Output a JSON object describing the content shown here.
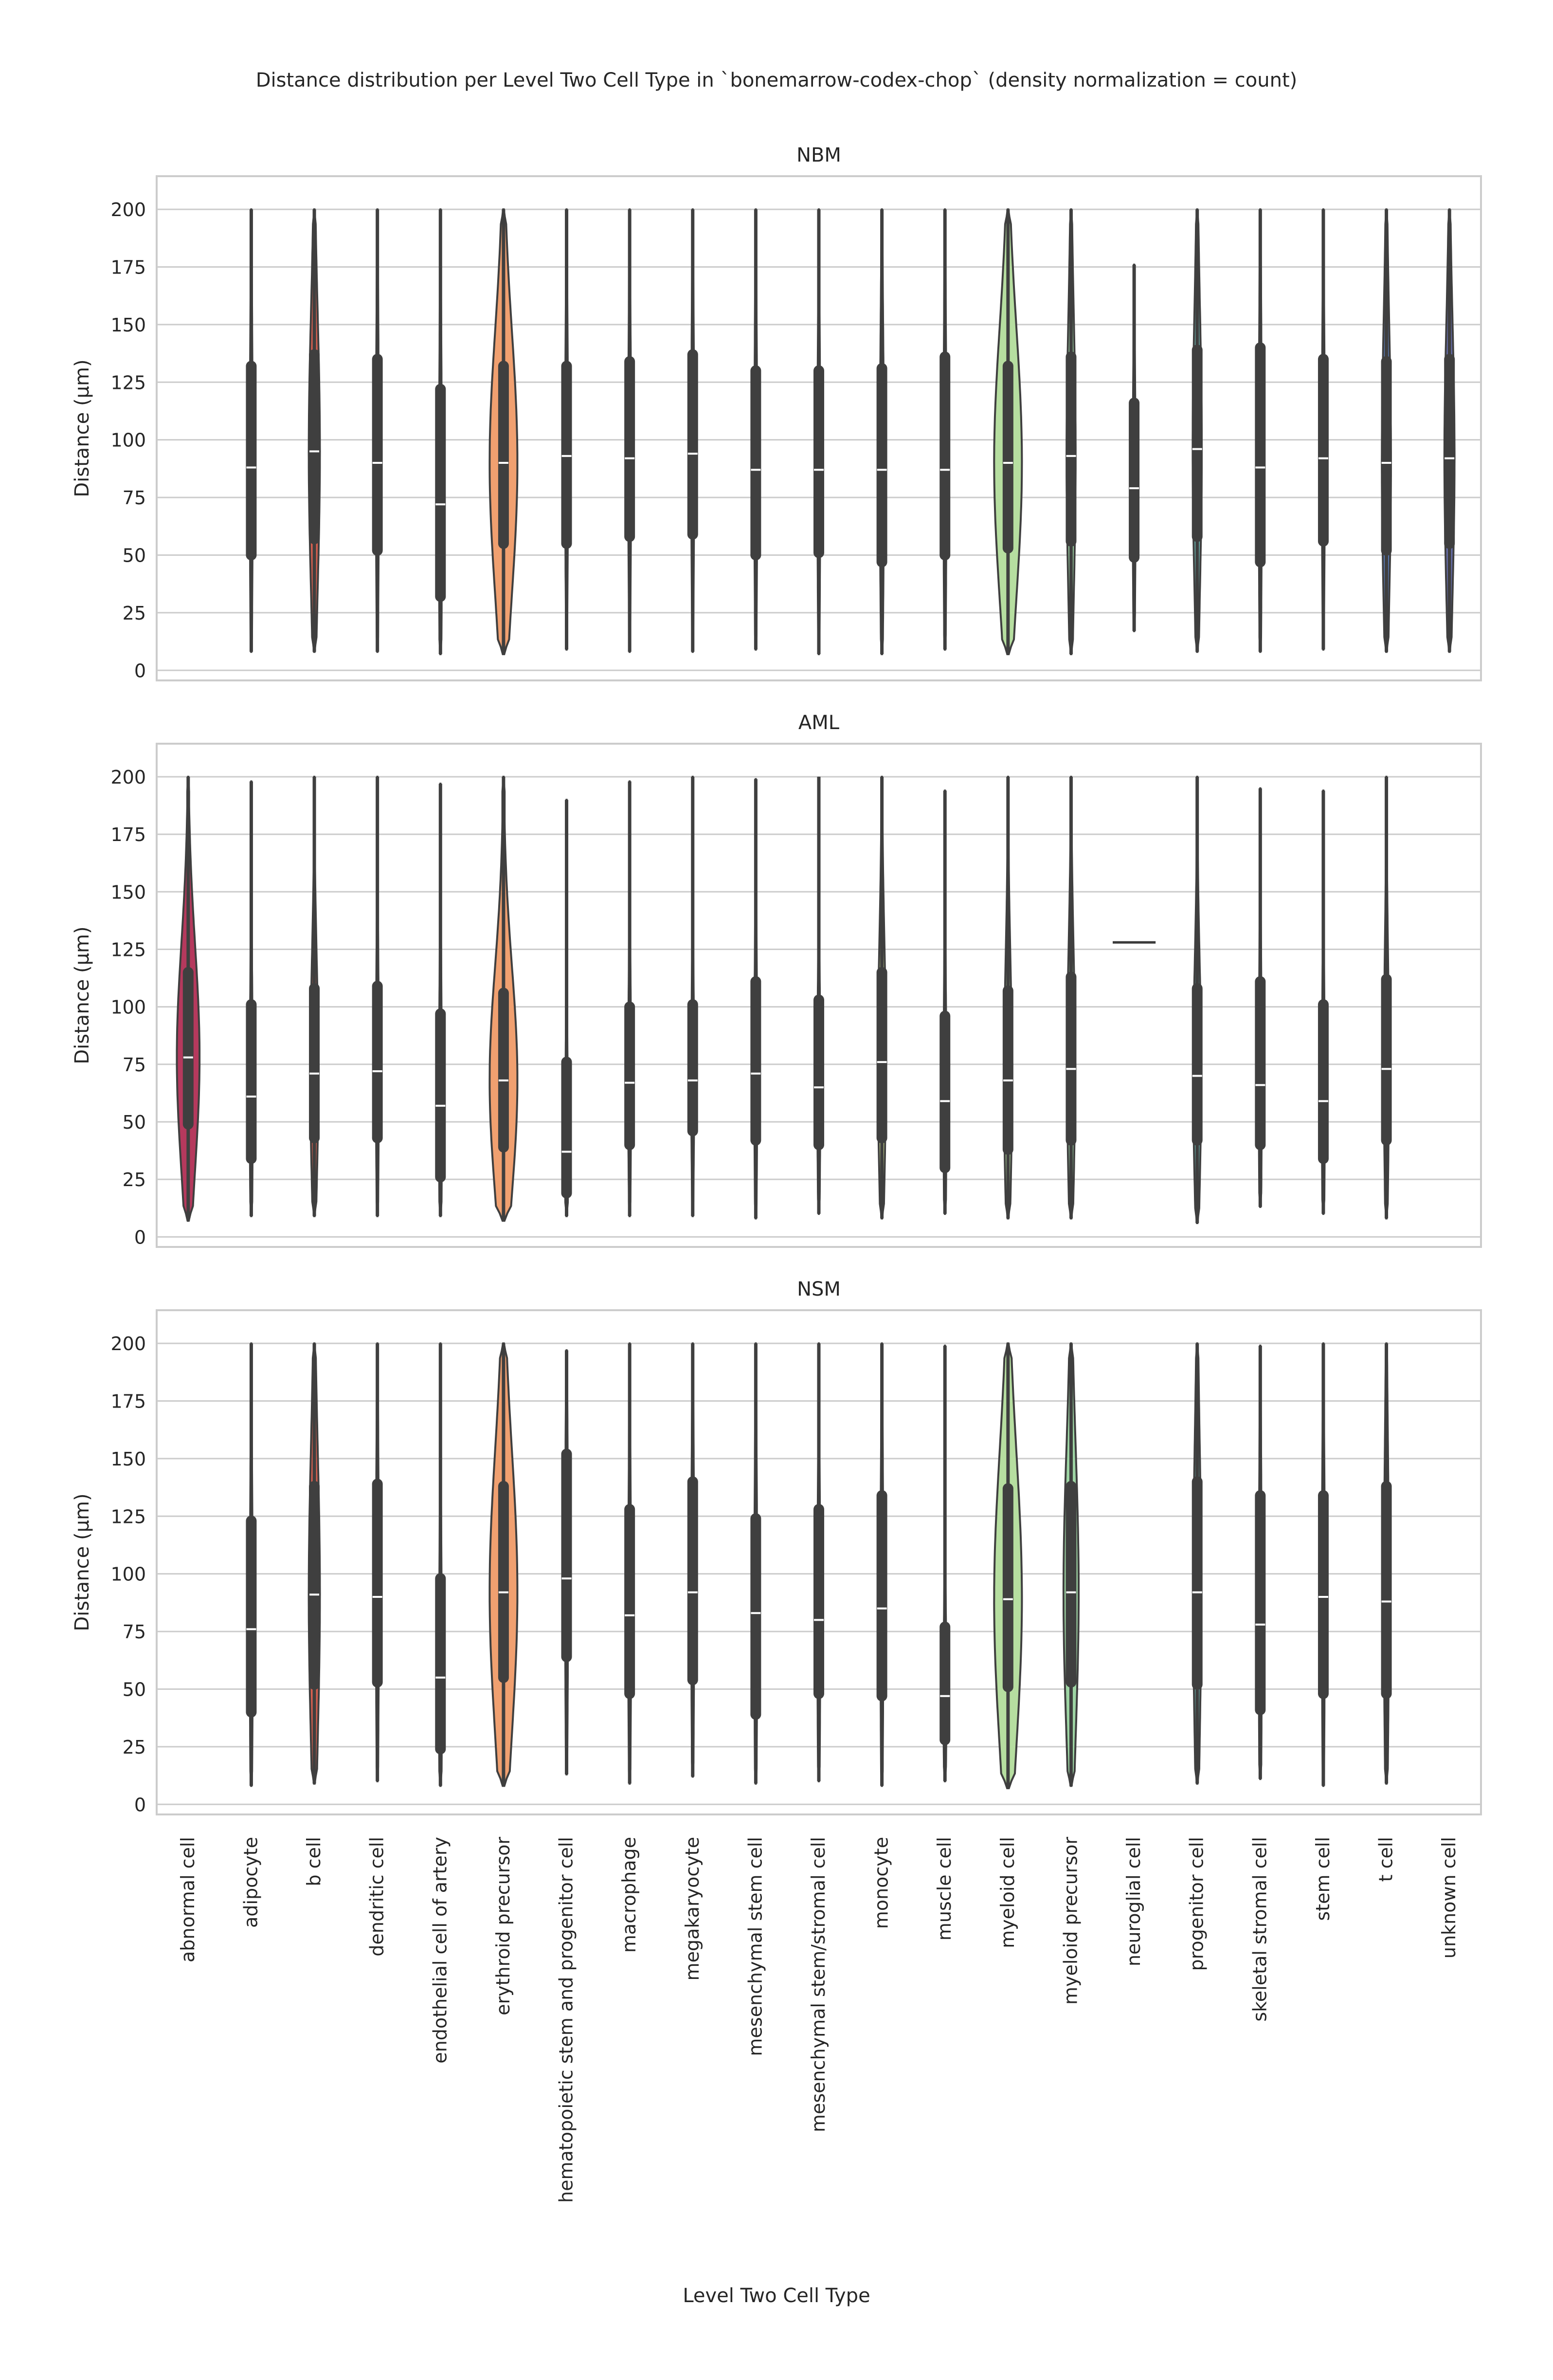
{
  "chart_data": {
    "type": "violin",
    "title": "Distance distribution per Level Two Cell Type in `bonemarrow-codex-chop` (density normalization = count)",
    "xlabel": "Level Two Cell Type",
    "ylabel": "Distance (µm)",
    "ylim": [
      0,
      210
    ],
    "yticks": [
      0,
      25,
      50,
      75,
      100,
      125,
      150,
      175,
      200
    ],
    "grid": true,
    "categories": [
      "abnormal cell",
      "adipocyte",
      "b cell",
      "dendritic cell",
      "endothelial cell of artery",
      "erythroid precursor",
      "hematopoietic stem and progenitor cell",
      "macrophage",
      "megakaryocyte",
      "mesenchymal stem cell",
      "mesenchymal stem/stromal cell",
      "monocyte",
      "muscle cell",
      "myeloid cell",
      "myeloid precursor",
      "neuroglial cell",
      "progenitor cell",
      "skeletal stromal cell",
      "stem cell",
      "t cell",
      "unknown cell"
    ],
    "colors": [
      "#b5395d",
      "#c64a4f",
      "#d9604f",
      "#e6744e",
      "#ef8c55",
      "#f0a070",
      "#f4b87a",
      "#f7cd8a",
      "#f5de96",
      "#f0ea9d",
      "#e7ee9b",
      "#dcef9a",
      "#c8e69c",
      "#b6dea0",
      "#9dd4a3",
      "#80c7a5",
      "#6ab0ab",
      "#5a9fb8",
      "#4e8dbf",
      "#5a7dbd",
      "#6a72b5"
    ],
    "panels": [
      {
        "title": "NBM",
        "violins": [
          null,
          {
            "min": 8,
            "max": 200,
            "q1": 50,
            "median": 88,
            "q3": 132,
            "w": 0.02
          },
          {
            "min": 8,
            "max": 200,
            "q1": 57,
            "median": 95,
            "q3": 137,
            "w": 0.22
          },
          {
            "min": 8,
            "max": 200,
            "q1": 52,
            "median": 90,
            "q3": 135,
            "w": 0.02
          },
          {
            "min": 7,
            "max": 200,
            "q1": 32,
            "median": 72,
            "q3": 122,
            "w": 0.02
          },
          {
            "min": 7,
            "max": 200,
            "q1": 55,
            "median": 90,
            "q3": 132,
            "w": 0.55
          },
          {
            "min": 9,
            "max": 200,
            "q1": 55,
            "median": 93,
            "q3": 132,
            "w": 0.02
          },
          {
            "min": 8,
            "max": 200,
            "q1": 58,
            "median": 92,
            "q3": 134,
            "w": 0.02
          },
          {
            "min": 8,
            "max": 200,
            "q1": 59,
            "median": 94,
            "q3": 137,
            "w": 0.02
          },
          {
            "min": 9,
            "max": 200,
            "q1": 50,
            "median": 87,
            "q3": 130,
            "w": 0.02
          },
          {
            "min": 7,
            "max": 200,
            "q1": 51,
            "median": 87,
            "q3": 130,
            "w": 0.02
          },
          {
            "min": 7,
            "max": 200,
            "q1": 47,
            "median": 87,
            "q3": 131,
            "w": 0.08
          },
          {
            "min": 9,
            "max": 200,
            "q1": 50,
            "median": 87,
            "q3": 136,
            "w": 0.02
          },
          {
            "min": 7,
            "max": 200,
            "q1": 53,
            "median": 90,
            "q3": 132,
            "w": 0.55
          },
          {
            "min": 7,
            "max": 200,
            "q1": 56,
            "median": 93,
            "q3": 136,
            "w": 0.18
          },
          {
            "min": 17,
            "max": 176,
            "q1": 49,
            "median": 79,
            "q3": 116,
            "w": 0.02
          },
          {
            "min": 8,
            "max": 200,
            "q1": 58,
            "median": 96,
            "q3": 139,
            "w": 0.18
          },
          {
            "min": 8,
            "max": 200,
            "q1": 47,
            "median": 88,
            "q3": 140,
            "w": 0.02
          },
          {
            "min": 9,
            "max": 200,
            "q1": 56,
            "median": 92,
            "q3": 135,
            "w": 0.02
          },
          {
            "min": 8,
            "max": 200,
            "q1": 52,
            "median": 90,
            "q3": 134,
            "w": 0.18
          },
          {
            "min": 8,
            "max": 200,
            "q1": 55,
            "median": 92,
            "q3": 135,
            "w": 0.2
          }
        ]
      },
      {
        "title": "AML",
        "violins": [
          {
            "min": 7,
            "max": 200,
            "q1": 49,
            "median": 78,
            "q3": 115,
            "w": 0.45
          },
          {
            "min": 9,
            "max": 198,
            "q1": 34,
            "median": 61,
            "q3": 101,
            "w": 0.02
          },
          {
            "min": 9,
            "max": 200,
            "q1": 43,
            "median": 71,
            "q3": 108,
            "w": 0.16
          },
          {
            "min": 9,
            "max": 200,
            "q1": 43,
            "median": 72,
            "q3": 109,
            "w": 0.02
          },
          {
            "min": 9,
            "max": 197,
            "q1": 26,
            "median": 57,
            "q3": 97,
            "w": 0.02
          },
          {
            "min": 7,
            "max": 200,
            "q1": 39,
            "median": 68,
            "q3": 106,
            "w": 0.55
          },
          {
            "min": 9,
            "max": 190,
            "q1": 19,
            "median": 37,
            "q3": 76,
            "w": 0.02
          },
          {
            "min": 9,
            "max": 198,
            "q1": 40,
            "median": 67,
            "q3": 100,
            "w": 0.02
          },
          {
            "min": 9,
            "max": 200,
            "q1": 46,
            "median": 68,
            "q3": 101,
            "w": 0.02
          },
          {
            "min": 8,
            "max": 199,
            "q1": 42,
            "median": 71,
            "q3": 111,
            "w": 0.02
          },
          {
            "min": 10,
            "max": 200,
            "q1": 40,
            "median": 65,
            "q3": 103,
            "w": 0.02
          },
          {
            "min": 8,
            "max": 200,
            "q1": 43,
            "median": 76,
            "q3": 115,
            "w": 0.16
          },
          {
            "min": 10,
            "max": 194,
            "q1": 30,
            "median": 59,
            "q3": 96,
            "w": 0.02
          },
          {
            "min": 8,
            "max": 200,
            "q1": 38,
            "median": 68,
            "q3": 107,
            "w": 0.16
          },
          {
            "min": 8,
            "max": 200,
            "q1": 42,
            "median": 73,
            "q3": 113,
            "w": 0.16
          },
          {
            "flat": 128
          },
          {
            "min": 6,
            "max": 200,
            "q1": 42,
            "median": 70,
            "q3": 108,
            "w": 0.16
          },
          {
            "min": 13,
            "max": 195,
            "q1": 40,
            "median": 66,
            "q3": 111,
            "w": 0.02
          },
          {
            "min": 10,
            "max": 194,
            "q1": 34,
            "median": 59,
            "q3": 101,
            "w": 0.02
          },
          {
            "min": 8,
            "max": 200,
            "q1": 42,
            "median": 73,
            "q3": 112,
            "w": 0.1
          },
          null
        ]
      },
      {
        "title": "NSM",
        "violins": [
          null,
          {
            "min": 8,
            "max": 200,
            "q1": 40,
            "median": 76,
            "q3": 123,
            "w": 0.02
          },
          {
            "min": 9,
            "max": 200,
            "q1": 52,
            "median": 91,
            "q3": 138,
            "w": 0.22
          },
          {
            "min": 10,
            "max": 200,
            "q1": 53,
            "median": 90,
            "q3": 139,
            "w": 0.02
          },
          {
            "min": 8,
            "max": 200,
            "q1": 24,
            "median": 55,
            "q3": 98,
            "w": 0.02
          },
          {
            "min": 8,
            "max": 200,
            "q1": 55,
            "median": 92,
            "q3": 138,
            "w": 0.55
          },
          {
            "min": 13,
            "max": 197,
            "q1": 64,
            "median": 98,
            "q3": 152,
            "w": 0.02
          },
          {
            "min": 9,
            "max": 200,
            "q1": 48,
            "median": 82,
            "q3": 128,
            "w": 0.02
          },
          {
            "min": 12,
            "max": 200,
            "q1": 54,
            "median": 92,
            "q3": 140,
            "w": 0.02
          },
          {
            "min": 9,
            "max": 200,
            "q1": 39,
            "median": 83,
            "q3": 124,
            "w": 0.02
          },
          {
            "min": 10,
            "max": 200,
            "q1": 48,
            "median": 80,
            "q3": 128,
            "w": 0.02
          },
          {
            "min": 8,
            "max": 200,
            "q1": 47,
            "median": 85,
            "q3": 134,
            "w": 0.04
          },
          {
            "min": 10,
            "max": 199,
            "q1": 28,
            "median": 47,
            "q3": 77,
            "w": 0.02
          },
          {
            "min": 7,
            "max": 200,
            "q1": 51,
            "median": 89,
            "q3": 137,
            "w": 0.55
          },
          {
            "min": 8,
            "max": 200,
            "q1": 53,
            "median": 92,
            "q3": 138,
            "w": 0.3
          },
          null,
          {
            "min": 9,
            "max": 200,
            "q1": 52,
            "median": 92,
            "q3": 140,
            "w": 0.16
          },
          {
            "min": 11,
            "max": 199,
            "q1": 41,
            "median": 78,
            "q3": 134,
            "w": 0.02
          },
          {
            "min": 8,
            "max": 200,
            "q1": 48,
            "median": 90,
            "q3": 134,
            "w": 0.02
          },
          {
            "min": 9,
            "max": 200,
            "q1": 48,
            "median": 88,
            "q3": 138,
            "w": 0.1
          },
          null
        ]
      }
    ]
  }
}
